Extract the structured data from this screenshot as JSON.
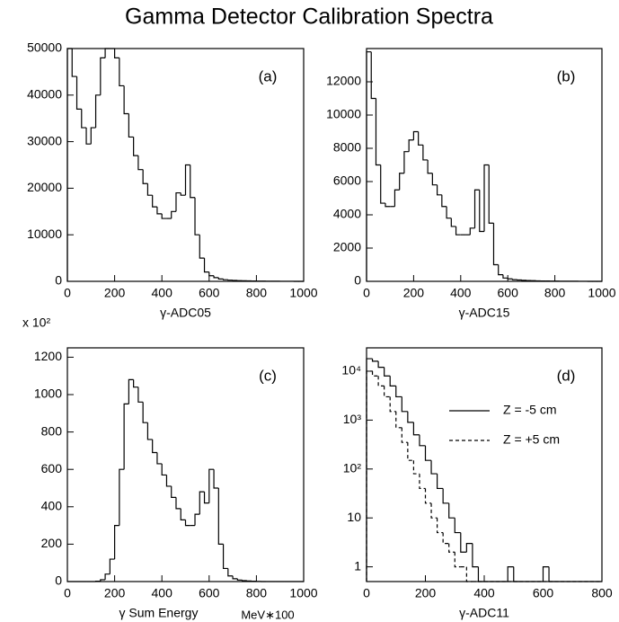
{
  "title": "Gamma Detector Calibration Spectra",
  "chart_data": [
    {
      "type": "histogram",
      "xlabel": "γ-ADC05",
      "annotation": "(a)",
      "color": "#000000",
      "bins": [
        0,
        20,
        40,
        60,
        80,
        100,
        120,
        140,
        160,
        180,
        200,
        220,
        240,
        260,
        280,
        300,
        320,
        340,
        360,
        380,
        400,
        420,
        440,
        460,
        480,
        500,
        520,
        540,
        560,
        580,
        600,
        620,
        640,
        660,
        680,
        700,
        720,
        740,
        760,
        780,
        800,
        820,
        840,
        860,
        880,
        900,
        920,
        940,
        960,
        980,
        1000
      ],
      "values": [
        50000,
        44000,
        37000,
        33000,
        29500,
        33000,
        40000,
        48000,
        50000,
        50000,
        48000,
        42000,
        36000,
        31000,
        27000,
        24000,
        21000,
        18500,
        16000,
        14500,
        13500,
        13500,
        15000,
        19000,
        18500,
        25000,
        18000,
        10000,
        5000,
        2000,
        1200,
        800,
        500,
        350,
        250,
        200,
        150,
        120,
        100,
        80,
        60,
        50,
        40,
        30,
        20,
        15,
        10,
        8,
        5,
        3
      ],
      "xlim": [
        0,
        1000
      ],
      "xticks": [
        0,
        200,
        400,
        600,
        800,
        1000
      ],
      "ylim": [
        0,
        50000
      ],
      "yticks": [
        0,
        10000,
        20000,
        30000,
        40000,
        50000
      ]
    },
    {
      "type": "histogram",
      "xlabel": "γ-ADC15",
      "annotation": "(b)",
      "color": "#000000",
      "bins": [
        0,
        20,
        40,
        60,
        80,
        100,
        120,
        140,
        160,
        180,
        200,
        220,
        240,
        260,
        280,
        300,
        320,
        340,
        360,
        380,
        400,
        420,
        440,
        460,
        480,
        500,
        520,
        540,
        560,
        580,
        600,
        620,
        640,
        660,
        680,
        700,
        720,
        740,
        760,
        780,
        800,
        820,
        840,
        860,
        880,
        900,
        920,
        940,
        960,
        980,
        1000
      ],
      "values": [
        13800,
        11000,
        7000,
        4700,
        4500,
        4500,
        5500,
        6500,
        7800,
        8500,
        9000,
        8200,
        7300,
        6500,
        5800,
        5200,
        4500,
        3800,
        3300,
        2800,
        2800,
        2800,
        3200,
        5500,
        3000,
        7000,
        3500,
        1000,
        400,
        200,
        150,
        100,
        80,
        60,
        50,
        40,
        30,
        25,
        20,
        15,
        12,
        10,
        8,
        6,
        5,
        4,
        3,
        2,
        1,
        0
      ],
      "xlim": [
        0,
        1000
      ],
      "xticks": [
        0,
        200,
        400,
        600,
        800,
        1000
      ],
      "ylim": [
        0,
        14000
      ],
      "yticks": [
        0,
        2000,
        4000,
        6000,
        8000,
        10000,
        12000
      ]
    },
    {
      "type": "histogram",
      "xlabel": "γ Sum Energy",
      "xlabel_unit": "MeV∗100",
      "multiplier_label": "x 10²",
      "annotation": "(c)",
      "color": "#000000",
      "bins": [
        0,
        20,
        40,
        60,
        80,
        100,
        120,
        140,
        160,
        180,
        200,
        220,
        240,
        260,
        280,
        300,
        320,
        340,
        360,
        380,
        400,
        420,
        440,
        460,
        480,
        500,
        520,
        540,
        560,
        580,
        600,
        620,
        640,
        660,
        680,
        700,
        720,
        740,
        760,
        780,
        800,
        820,
        840,
        860,
        880,
        900,
        920,
        940,
        960,
        980,
        1000
      ],
      "values": [
        0,
        0,
        0,
        0,
        0,
        0,
        2,
        10,
        40,
        120,
        300,
        600,
        950,
        1080,
        1040,
        960,
        850,
        760,
        690,
        630,
        570,
        510,
        450,
        390,
        330,
        300,
        300,
        360,
        480,
        420,
        600,
        500,
        200,
        70,
        30,
        15,
        8,
        5,
        3,
        2,
        1,
        0,
        0,
        0,
        0,
        0,
        0,
        0,
        0,
        0
      ],
      "xlim": [
        0,
        1000
      ],
      "xticks": [
        0,
        200,
        400,
        600,
        800,
        1000
      ],
      "ylim": [
        0,
        1250
      ],
      "yticks": [
        0,
        200,
        400,
        600,
        800,
        1000,
        1200
      ]
    },
    {
      "type": "histogram",
      "xlabel": "γ-ADC11",
      "annotation": "(d)",
      "log_y": true,
      "legend": "upper right",
      "bins": [
        0,
        20,
        40,
        60,
        80,
        100,
        120,
        140,
        160,
        180,
        200,
        220,
        240,
        260,
        280,
        300,
        320,
        340,
        360,
        380,
        400,
        420,
        440,
        460,
        480,
        500,
        520,
        540,
        560,
        580,
        600,
        620,
        640,
        660,
        680,
        700,
        720,
        740,
        760,
        780,
        800
      ],
      "series": [
        {
          "name": "Z = -5 cm",
          "color": "#000000",
          "linestyle": "solid",
          "values": [
            18000,
            16000,
            12000,
            8000,
            5000,
            3000,
            1500,
            900,
            500,
            300,
            150,
            80,
            40,
            20,
            10,
            5,
            2,
            3,
            1,
            0,
            0,
            0,
            0,
            0,
            1,
            0,
            0,
            0,
            0,
            0,
            1,
            0,
            0,
            0,
            0,
            0,
            0,
            0,
            0,
            0
          ]
        },
        {
          "name": "Z = +5 cm",
          "color": "#000000",
          "linestyle": "dashed",
          "values": [
            10000,
            8000,
            5000,
            3000,
            1500,
            700,
            350,
            150,
            80,
            40,
            20,
            10,
            5,
            3,
            2,
            1,
            1,
            0,
            0,
            0,
            0,
            0,
            0,
            0,
            0,
            0,
            0,
            0,
            0,
            0,
            0,
            0,
            0,
            0,
            0,
            0,
            0,
            0,
            0,
            0
          ]
        }
      ],
      "xlim": [
        0,
        800
      ],
      "xticks": [
        0,
        200,
        400,
        600,
        800
      ],
      "ylim": [
        0.5,
        30000
      ],
      "yticks": [
        1,
        10,
        {
          "value": 100,
          "label": "10²"
        },
        {
          "value": 1000,
          "label": "10³"
        },
        {
          "value": 10000,
          "label": "10⁴"
        }
      ]
    }
  ]
}
